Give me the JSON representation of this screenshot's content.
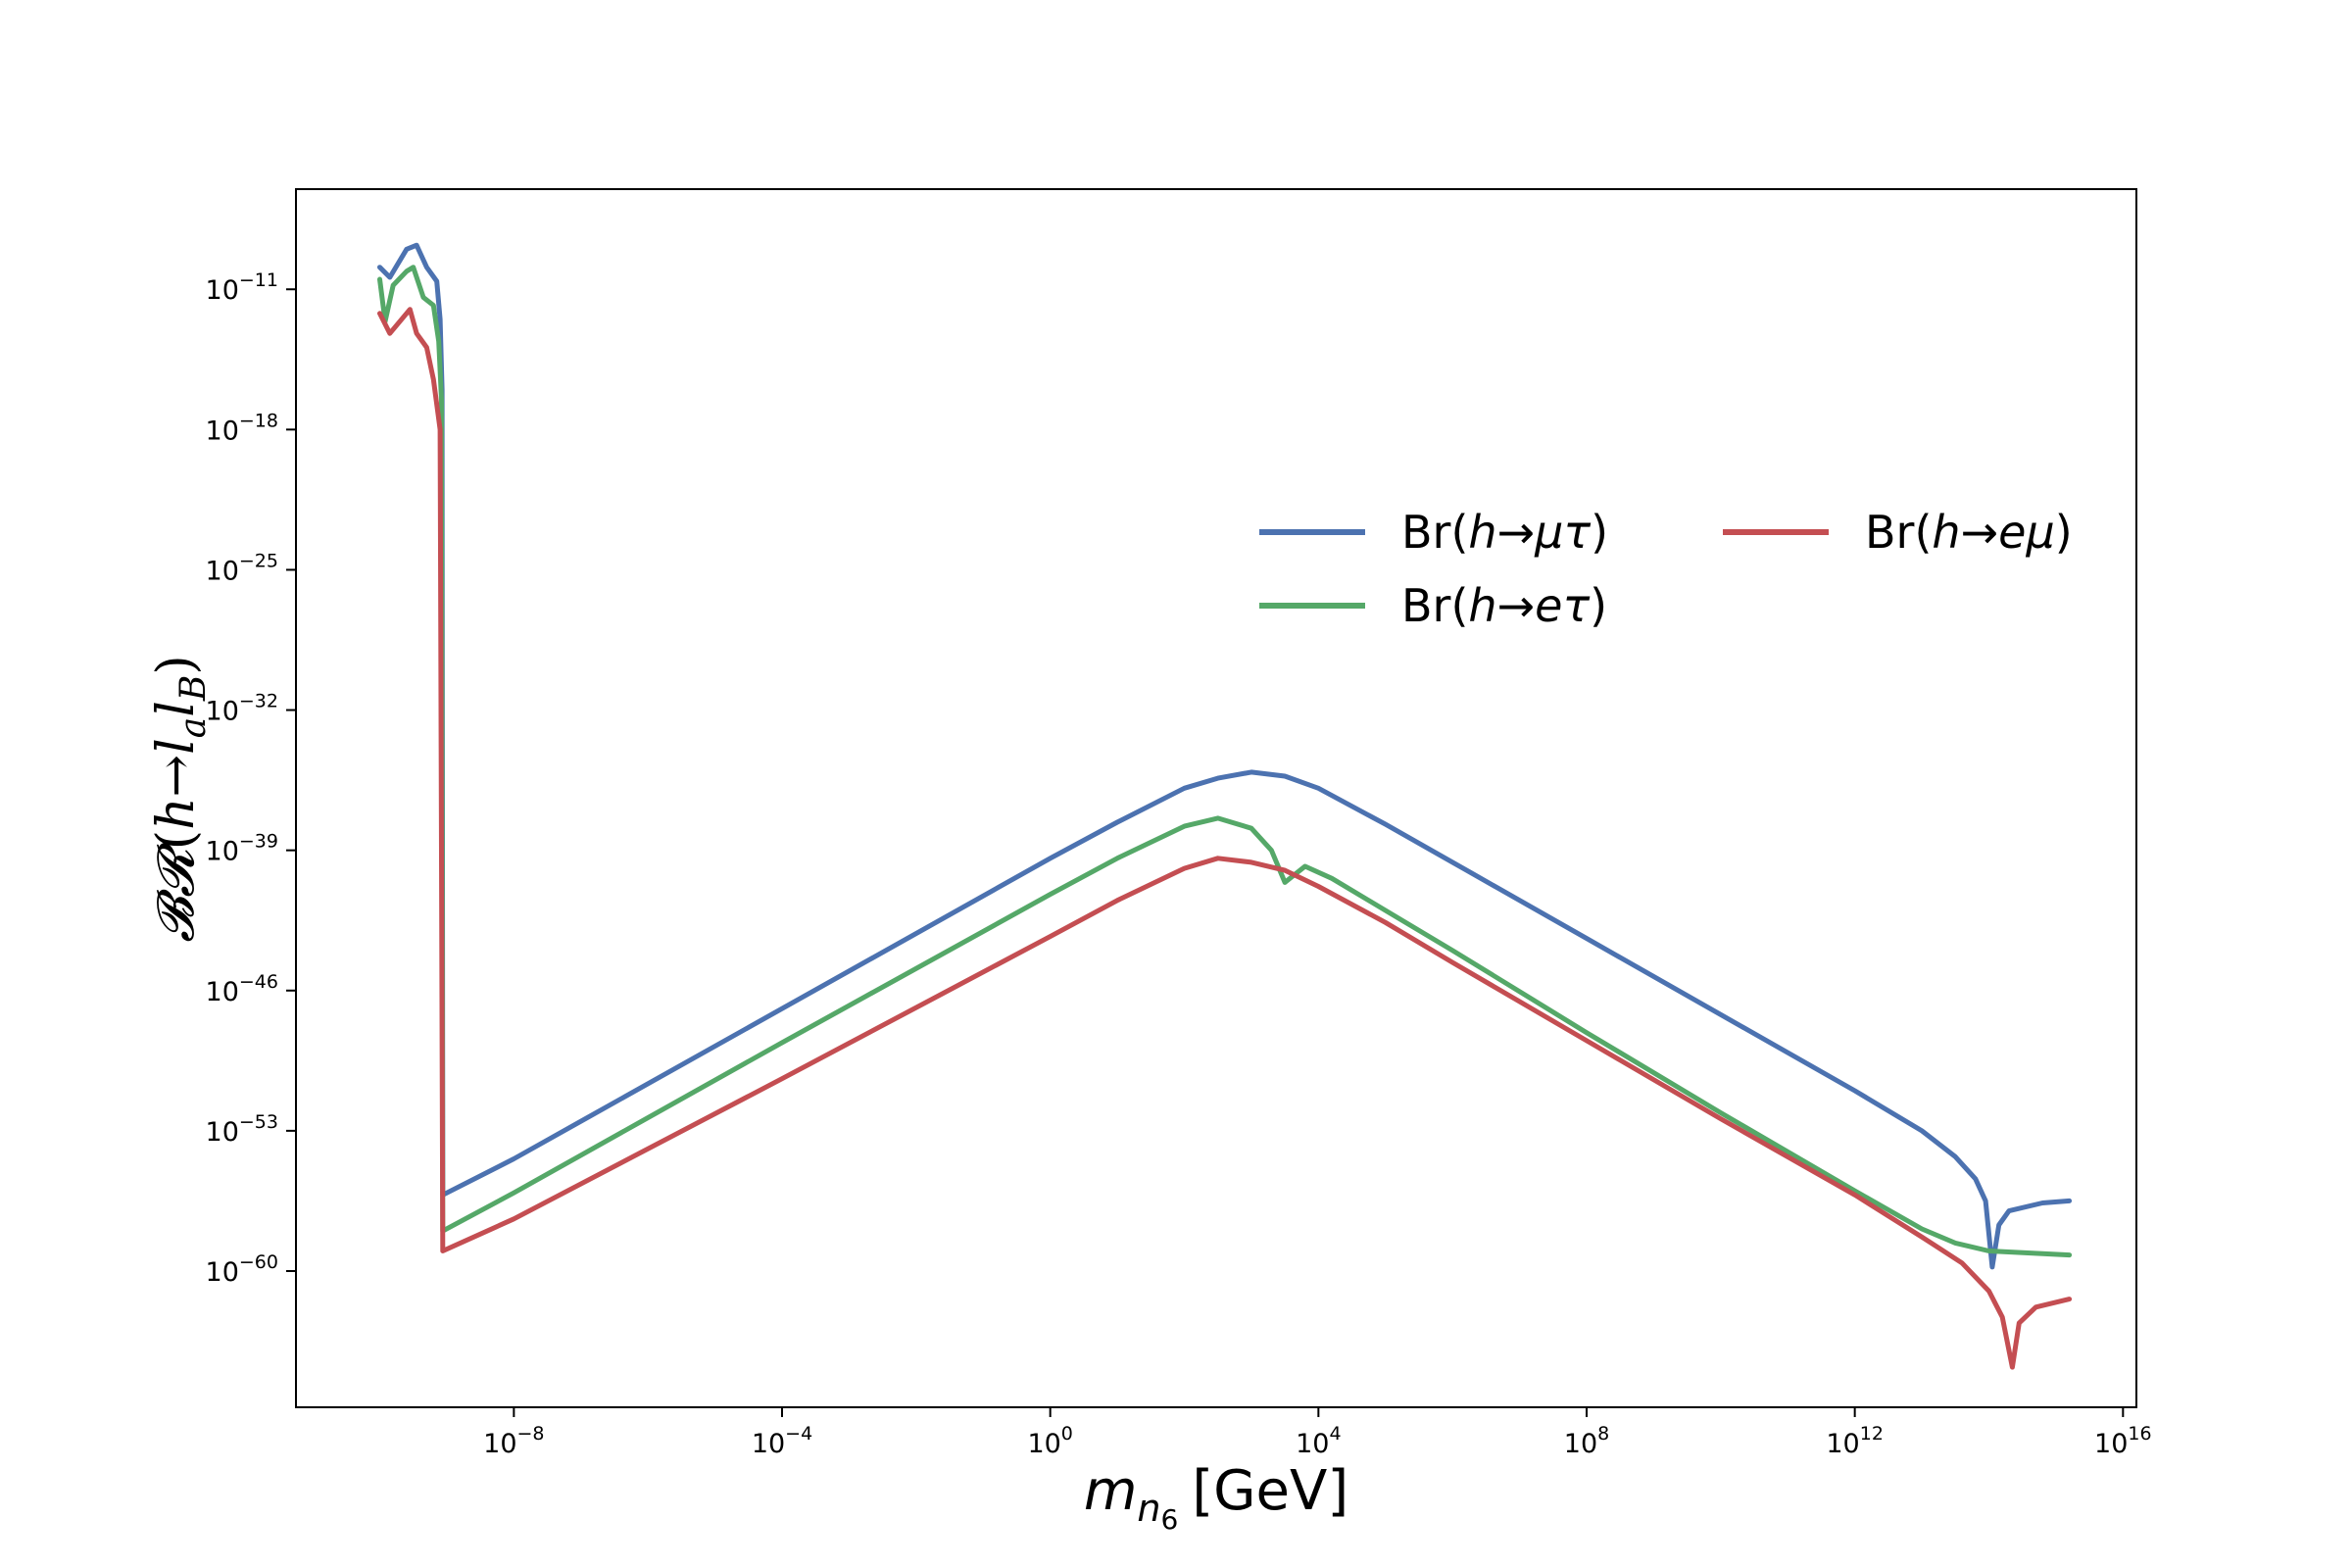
{
  "chart_data": {
    "type": "line",
    "xlabel": {
      "italic_main": "m",
      "italic_sub": "n",
      "sub_index": "6",
      "unit": "[GeV]"
    },
    "ylabel": {
      "prefix": "𝓑𝓡",
      "open": "(",
      "italic_h": "h",
      "arrow": "→",
      "italic_l1": "l",
      "sub_a": "a",
      "italic_l2": "l",
      "sub_b": "B",
      "close": ")"
    },
    "xscale": "log",
    "yscale": "log",
    "xlim_exp": [
      -11.25,
      16.2
    ],
    "ylim_exp": [
      -66.8,
      -6.0
    ],
    "x_ticks": [
      {
        "base": "10",
        "exp": "−8",
        "value_exp": -8
      },
      {
        "base": "10",
        "exp": "−4",
        "value_exp": -4
      },
      {
        "base": "10",
        "exp": "0",
        "value_exp": 0
      },
      {
        "base": "10",
        "exp": "4",
        "value_exp": 4
      },
      {
        "base": "10",
        "exp": "8",
        "value_exp": 8
      },
      {
        "base": "10",
        "exp": "12",
        "value_exp": 12
      },
      {
        "base": "10",
        "exp": "16",
        "value_exp": 16
      }
    ],
    "y_ticks": [
      {
        "base": "10",
        "exp": "−11",
        "value_exp": -11
      },
      {
        "base": "10",
        "exp": "−18",
        "value_exp": -18
      },
      {
        "base": "10",
        "exp": "−25",
        "value_exp": -25
      },
      {
        "base": "10",
        "exp": "−32",
        "value_exp": -32
      },
      {
        "base": "10",
        "exp": "−39",
        "value_exp": -39
      },
      {
        "base": "10",
        "exp": "−46",
        "value_exp": -46
      },
      {
        "base": "10",
        "exp": "−53",
        "value_exp": -53
      },
      {
        "base": "10",
        "exp": "−60",
        "value_exp": -60
      }
    ],
    "grid": false,
    "legend_position": "upper-right",
    "series": [
      {
        "id": "mutau",
        "legend": {
          "prefix": "Br(",
          "h": "h",
          "arrow": "→",
          "l1": "μ",
          "l2": "τ",
          "close": ")"
        },
        "color": "#4c72b0",
        "points_log10": [
          [
            -10,
            -9.9
          ],
          [
            -9.85,
            -10.4
          ],
          [
            -9.6,
            -9.0
          ],
          [
            -9.45,
            -8.8
          ],
          [
            -9.3,
            -9.9
          ],
          [
            -9.15,
            -10.6
          ],
          [
            -9.1,
            -12.5
          ],
          [
            -9.07,
            -16.0
          ],
          [
            -9.06,
            -56.2
          ],
          [
            -8.0,
            -54.4
          ],
          [
            -4.0,
            -46.9
          ],
          [
            0.0,
            -39.4
          ],
          [
            1.0,
            -37.6
          ],
          [
            2.0,
            -35.9
          ],
          [
            2.5,
            -35.4
          ],
          [
            3.0,
            -35.1
          ],
          [
            3.5,
            -35.3
          ],
          [
            4.0,
            -35.9
          ],
          [
            5.0,
            -37.7
          ],
          [
            6.0,
            -39.6
          ],
          [
            8.0,
            -43.4
          ],
          [
            10.0,
            -47.2
          ],
          [
            12.0,
            -51.0
          ],
          [
            13.0,
            -53.0
          ],
          [
            13.5,
            -54.3
          ],
          [
            13.8,
            -55.4
          ],
          [
            13.95,
            -56.5
          ],
          [
            14.05,
            -59.8
          ],
          [
            14.15,
            -57.7
          ],
          [
            14.3,
            -57.0
          ],
          [
            14.8,
            -56.6
          ],
          [
            15.2,
            -56.5
          ]
        ]
      },
      {
        "id": "etau",
        "legend": {
          "prefix": "Br(",
          "h": "h",
          "arrow": "→",
          "l1": "e",
          "l2": "τ",
          "close": ")"
        },
        "color": "#55a868",
        "points_log10": [
          [
            -10,
            -10.5
          ],
          [
            -9.92,
            -12.6
          ],
          [
            -9.8,
            -10.8
          ],
          [
            -9.6,
            -10.1
          ],
          [
            -9.5,
            -9.9
          ],
          [
            -9.35,
            -11.4
          ],
          [
            -9.2,
            -11.8
          ],
          [
            -9.12,
            -13.6
          ],
          [
            -9.08,
            -16.5
          ],
          [
            -9.06,
            -58.0
          ],
          [
            -8.0,
            -56.1
          ],
          [
            -4.0,
            -48.6
          ],
          [
            0.0,
            -41.2
          ],
          [
            1.0,
            -39.4
          ],
          [
            2.0,
            -37.8
          ],
          [
            2.5,
            -37.4
          ],
          [
            3.0,
            -37.9
          ],
          [
            3.3,
            -39.0
          ],
          [
            3.5,
            -40.6
          ],
          [
            3.65,
            -40.2
          ],
          [
            3.8,
            -39.8
          ],
          [
            4.2,
            -40.4
          ],
          [
            5.0,
            -42.0
          ],
          [
            6.0,
            -44.0
          ],
          [
            8.0,
            -48.1
          ],
          [
            10.0,
            -52.1
          ],
          [
            12.0,
            -56.0
          ],
          [
            13.0,
            -57.9
          ],
          [
            13.5,
            -58.6
          ],
          [
            14.0,
            -59.0
          ],
          [
            15.2,
            -59.2
          ]
        ]
      },
      {
        "id": "emu",
        "legend": {
          "prefix": "Br(",
          "h": "h",
          "arrow": "→",
          "l1": "e",
          "l2": "μ",
          "close": ")"
        },
        "color": "#c44e52",
        "points_log10": [
          [
            -10,
            -12.2
          ],
          [
            -9.85,
            -13.2
          ],
          [
            -9.65,
            -12.4
          ],
          [
            -9.55,
            -12.0
          ],
          [
            -9.45,
            -13.2
          ],
          [
            -9.3,
            -13.9
          ],
          [
            -9.2,
            -15.5
          ],
          [
            -9.1,
            -18.0
          ],
          [
            -9.06,
            -59.0
          ],
          [
            -8.0,
            -57.4
          ],
          [
            -4.0,
            -50.4
          ],
          [
            0.0,
            -43.3
          ],
          [
            1.0,
            -41.5
          ],
          [
            2.0,
            -39.9
          ],
          [
            2.5,
            -39.4
          ],
          [
            3.0,
            -39.6
          ],
          [
            3.5,
            -40.0
          ],
          [
            4.0,
            -40.8
          ],
          [
            5.0,
            -42.6
          ],
          [
            6.0,
            -44.6
          ],
          [
            8.0,
            -48.5
          ],
          [
            10.0,
            -52.4
          ],
          [
            12.0,
            -56.2
          ],
          [
            13.0,
            -58.3
          ],
          [
            13.6,
            -59.6
          ],
          [
            14.0,
            -61.0
          ],
          [
            14.2,
            -62.3
          ],
          [
            14.35,
            -64.8
          ],
          [
            14.45,
            -62.6
          ],
          [
            14.7,
            -61.8
          ],
          [
            15.2,
            -61.4
          ]
        ]
      }
    ]
  }
}
